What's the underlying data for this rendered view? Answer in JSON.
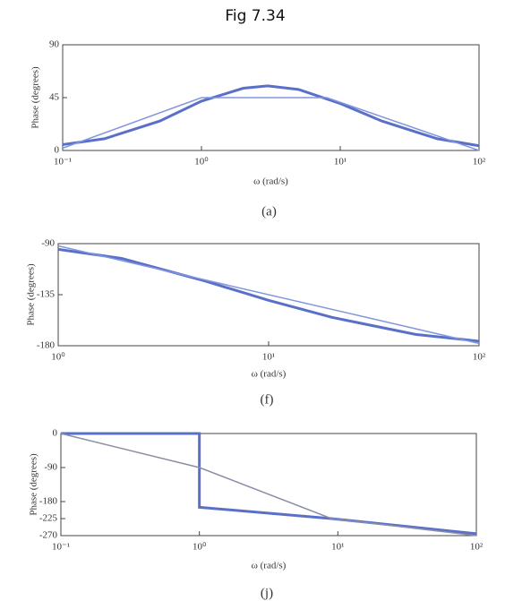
{
  "title": "Fig 7.34",
  "chart_data": [
    {
      "type": "line",
      "caption": "(a)",
      "xlabel": "ω (rad/s)",
      "ylabel": "Phase (degrees)",
      "xscale": "log",
      "xlim": [
        0.1,
        100
      ],
      "ylim": [
        0,
        90
      ],
      "xticks": [
        {
          "value": 0.1,
          "label": "10⁻¹"
        },
        {
          "value": 1,
          "label": "10⁰"
        },
        {
          "value": 10,
          "label": "10¹"
        },
        {
          "value": 100,
          "label": "10²"
        }
      ],
      "yticks": [
        0,
        45,
        90
      ],
      "series": [
        {
          "color": "#5a70c8",
          "x": [
            0.1,
            0.2,
            0.5,
            1,
            2,
            3,
            5,
            10,
            20,
            50,
            100
          ],
          "values": [
            5,
            10,
            25,
            42,
            53,
            55,
            52,
            40,
            25,
            10,
            4
          ]
        },
        {
          "color": "#8096de",
          "x": [
            0.1,
            1,
            8,
            100
          ],
          "values": [
            2,
            45,
            45,
            0
          ]
        }
      ]
    },
    {
      "type": "line",
      "caption": "(f)",
      "xlabel": "ω (rad/s)",
      "ylabel": "Phase (degrees)",
      "xscale": "log",
      "xlim": [
        1,
        100
      ],
      "ylim": [
        -180,
        -90
      ],
      "xticks": [
        {
          "value": 1,
          "label": "10⁰"
        },
        {
          "value": 10,
          "label": "10¹"
        },
        {
          "value": 100,
          "label": "10²"
        }
      ],
      "yticks": [
        -90,
        -135,
        -180
      ],
      "series": [
        {
          "color": "#5a70c8",
          "x": [
            1,
            2,
            5,
            10,
            20,
            50,
            100
          ],
          "values": [
            -95,
            -103,
            -123,
            -140,
            -155,
            -170,
            -176
          ]
        },
        {
          "color": "#8096de",
          "x": [
            1,
            100
          ],
          "values": [
            -92,
            -178
          ]
        }
      ]
    },
    {
      "type": "line",
      "caption": "(j)",
      "xlabel": "ω (rad/s)",
      "ylabel": "Phase (degrees)",
      "xscale": "log",
      "xlim": [
        0.1,
        100
      ],
      "ylim": [
        -270,
        0
      ],
      "xticks": [
        {
          "value": 0.1,
          "label": "10⁻¹"
        },
        {
          "value": 1,
          "label": "10⁰"
        },
        {
          "value": 10,
          "label": "10¹"
        },
        {
          "value": 100,
          "label": "10²"
        }
      ],
      "yticks": [
        0,
        -90,
        -180,
        -225,
        -270
      ],
      "series": [
        {
          "color": "#5a70c8",
          "x": [
            0.1,
            1,
            1,
            9,
            100
          ],
          "values": [
            0,
            0,
            -195,
            -225,
            -265
          ]
        },
        {
          "color": "#8a8fa8",
          "x": [
            0.1,
            1,
            9,
            100
          ],
          "values": [
            0,
            -90,
            -225,
            -270
          ]
        }
      ]
    }
  ]
}
